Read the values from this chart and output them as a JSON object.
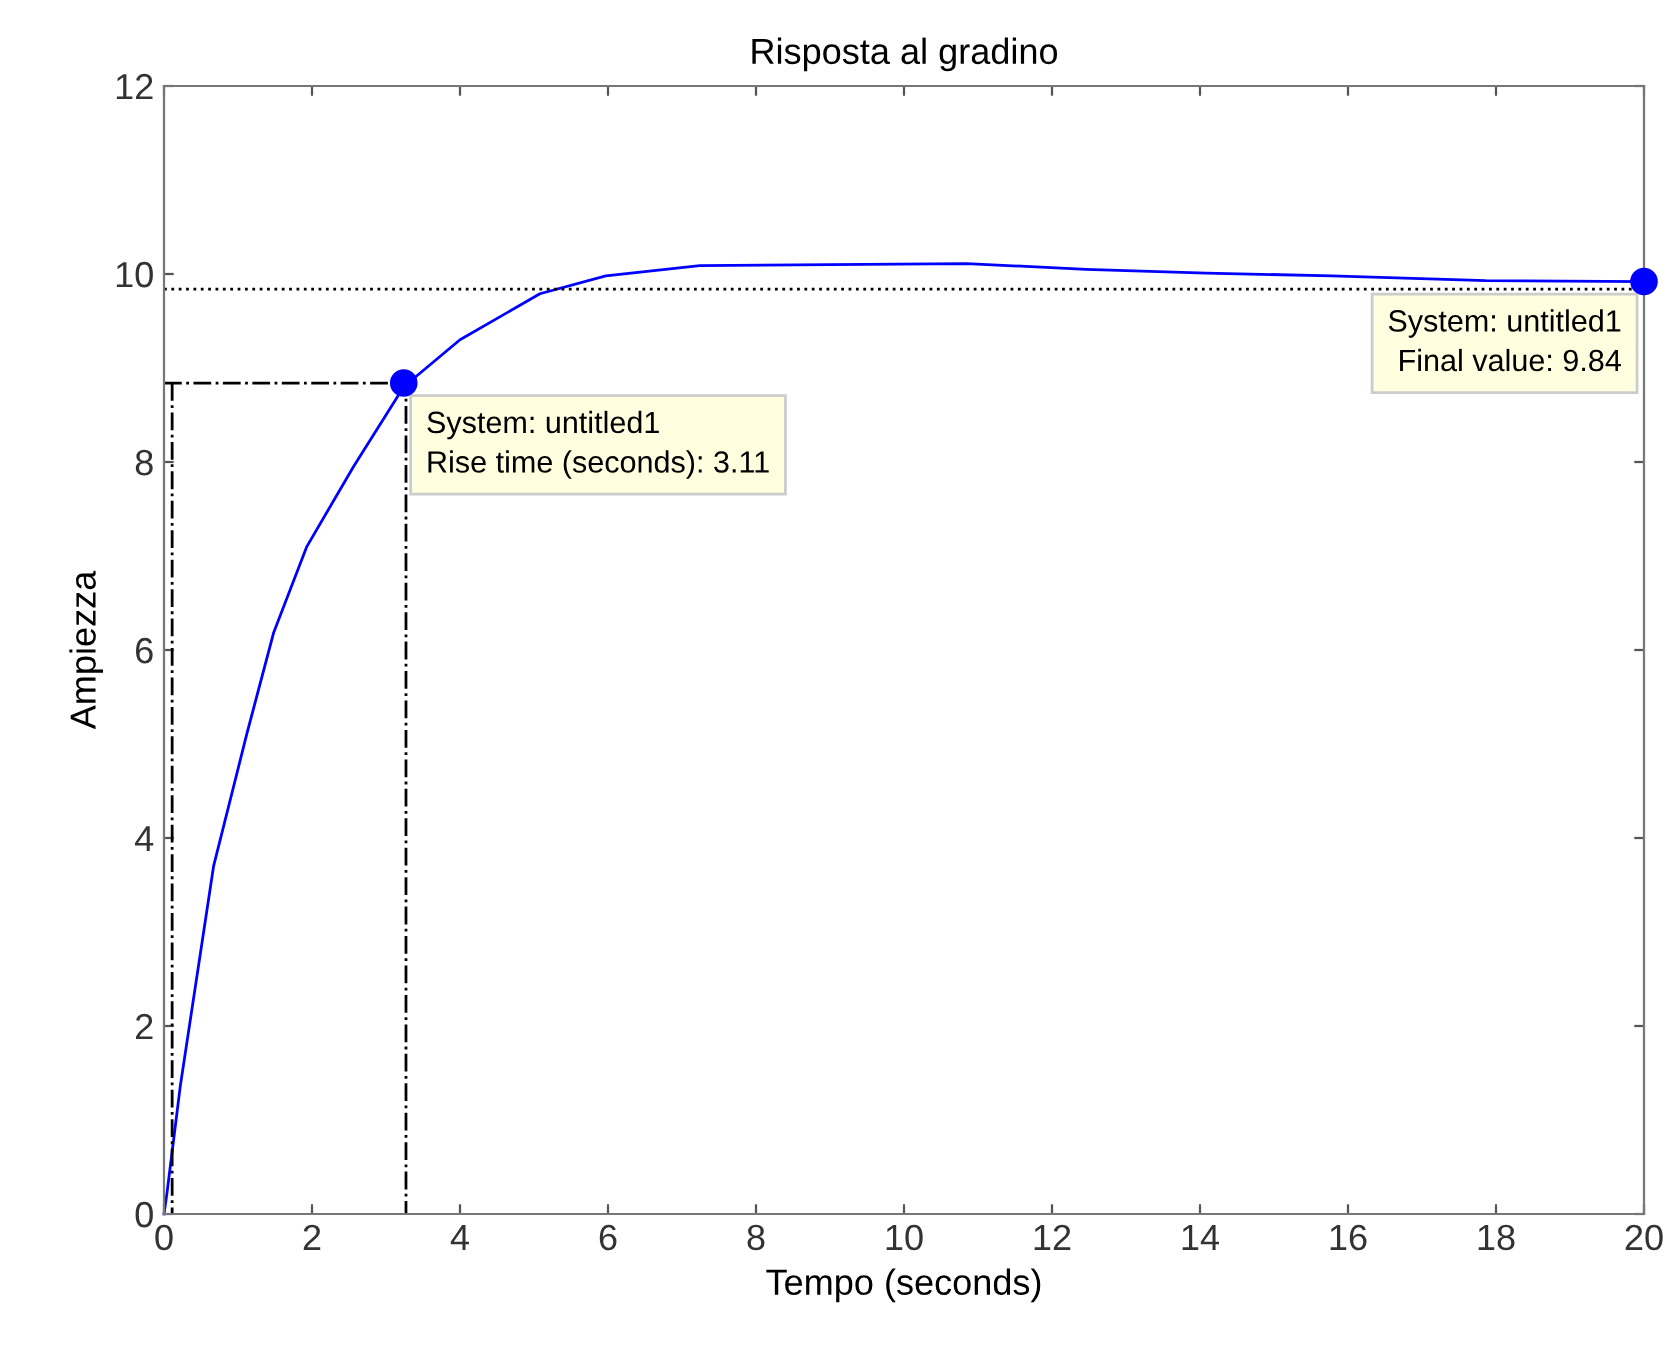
{
  "chart_data": {
    "type": "line",
    "title": "Risposta al gradino",
    "xlabel": "Tempo (seconds)",
    "ylabel": "Ampiezza",
    "xlim": [
      0,
      20
    ],
    "ylim": [
      0,
      12
    ],
    "xticks": [
      0,
      2,
      4,
      6,
      8,
      10,
      12,
      14,
      16,
      18,
      20
    ],
    "yticks": [
      0,
      2,
      4,
      6,
      8,
      10,
      12
    ],
    "grid": false,
    "series": [
      {
        "color": "#0000ff",
        "x": [
          0,
          0.04,
          0.22,
          0.67,
          1.12,
          1.48,
          1.93,
          2.56,
          3.24,
          4.0,
          5.08,
          5.97,
          7.24,
          10.85,
          12.46,
          14.08,
          15.78,
          17.86,
          20
        ],
        "values": [
          0,
          0.22,
          1.36,
          3.7,
          5.11,
          6.18,
          7.1,
          7.95,
          8.8,
          9.3,
          9.79,
          9.98,
          10.09,
          10.11,
          10.05,
          10.01,
          9.98,
          9.93,
          9.92
        ]
      },
      {
        "type": "scatter",
        "color": "#0000ff",
        "marker": "circle",
        "x": [
          3.24,
          20
        ],
        "values": [
          8.84,
          9.92
        ]
      },
      {
        "color": "#000000",
        "line_style": "dashdot",
        "x": [
          0,
          3.27,
          3.27
        ],
        "values": [
          8.84,
          8.84,
          0
        ]
      },
      {
        "color": "#000000",
        "line_style": "dashdot",
        "x": [
          0.11,
          0.11
        ],
        "values": [
          8.84,
          0
        ]
      }
    ],
    "ref_lines": [
      {
        "axis": "y",
        "value": 9.84,
        "color": "#000000",
        "line_style": "dotted"
      }
    ],
    "annotations": [
      {
        "text": "System: untitled1\nRise time (seconds): 3.11",
        "x": 3.24,
        "y": 8.84
      },
      {
        "text": "System: untitled1\nFinal value: 9.84",
        "x": 20,
        "y": 9.92
      }
    ]
  }
}
